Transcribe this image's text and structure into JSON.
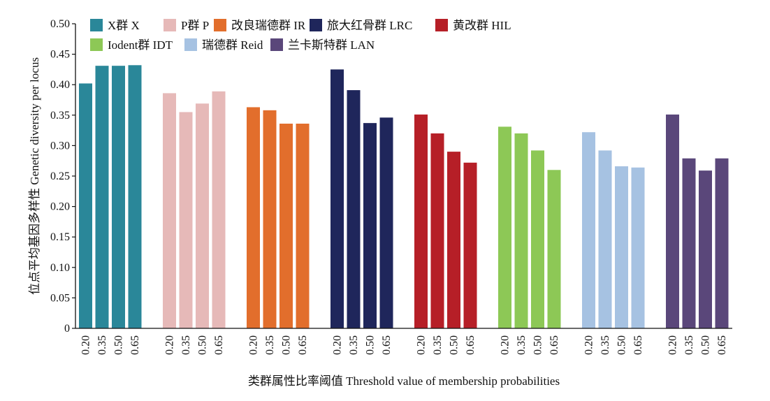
{
  "chart_data": {
    "type": "bar",
    "xlabel": "类群属性比率阈值 Threshold value of membership probabilities",
    "ylabel": "位点平均基因多样性 Genetic diversity per locus",
    "ylim": [
      0,
      0.5
    ],
    "yticks": [
      "0",
      "0.05",
      "0.10",
      "0.15",
      "0.20",
      "0.25",
      "0.30",
      "0.35",
      "0.40",
      "0.45",
      "0.50"
    ],
    "categories": [
      "0.20",
      "0.35",
      "0.50",
      "0.65"
    ],
    "grid": false,
    "legend_position": "top",
    "series": [
      {
        "name": "X群 X",
        "color": "#2a8799",
        "values": [
          0.402,
          0.431,
          0.431,
          0.432
        ]
      },
      {
        "name": "P群 P",
        "color": "#e6b9b8",
        "values": [
          0.386,
          0.355,
          0.369,
          0.389
        ]
      },
      {
        "name": "改良瑞德群 IR",
        "color": "#e26e2c",
        "values": [
          0.363,
          0.358,
          0.336,
          0.336
        ]
      },
      {
        "name": "旅大红骨群 LRC",
        "color": "#1f265b",
        "values": [
          0.425,
          0.391,
          0.337,
          0.346
        ]
      },
      {
        "name": "黄改群 HIL",
        "color": "#b61f27",
        "values": [
          0.351,
          0.32,
          0.29,
          0.272
        ]
      },
      {
        "name": "Iodent群 IDT",
        "color": "#8dc856",
        "values": [
          0.331,
          0.32,
          0.292,
          0.26
        ]
      },
      {
        "name": "瑞德群 Reid",
        "color": "#a6c2e2",
        "values": [
          0.322,
          0.292,
          0.266,
          0.264
        ]
      },
      {
        "name": "兰卡斯特群 LAN",
        "color": "#5a477a",
        "values": [
          0.351,
          0.279,
          0.259,
          0.279
        ]
      }
    ]
  }
}
